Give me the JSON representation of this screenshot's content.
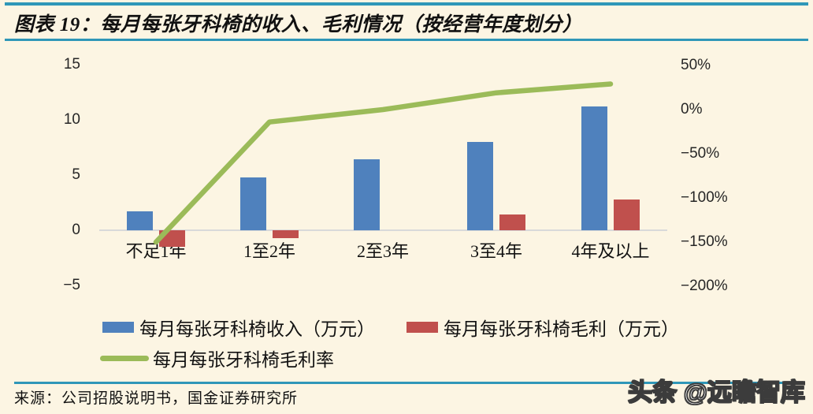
{
  "header": {
    "title": "图表 19：每月每张牙科椅的收入、毛利情况（按经营年度划分）"
  },
  "chart_data": {
    "type": "bar",
    "subtype": "clustered-bar-with-line-combo",
    "title": "每月每张牙科椅的收入、毛利情况（按经营年度划分）",
    "categories": [
      "不足1年",
      "1至2年",
      "2至3年",
      "3至4年",
      "4年及以上"
    ],
    "series": [
      {
        "name": "每月每张牙科椅收入（万元）",
        "type": "bar",
        "axis": "left",
        "color": "#4f81bd",
        "values": [
          1.7,
          4.8,
          6.4,
          8.0,
          11.2
        ]
      },
      {
        "name": "每月每张牙科椅毛利（万元）",
        "type": "bar",
        "axis": "left",
        "color": "#c0504d",
        "values": [
          -1.5,
          -0.7,
          0.0,
          1.4,
          2.8
        ]
      },
      {
        "name": "每月每张牙科椅毛利率",
        "type": "line",
        "axis": "right",
        "color": "#9bbb59",
        "values_pct": [
          -150,
          -14,
          0,
          19,
          29
        ]
      }
    ],
    "left_axis": {
      "tick_labels": [
        "15",
        "10",
        "5",
        "0",
        "−5"
      ],
      "tick_values": [
        15,
        10,
        5,
        0,
        -5
      ],
      "range": [
        -5,
        15
      ]
    },
    "right_axis": {
      "tick_labels": [
        "50%",
        "0%",
        "−50%",
        "−100%",
        "−150%",
        "−200%"
      ],
      "tick_values": [
        50,
        0,
        -50,
        -100,
        -150,
        -200
      ],
      "range_pct": [
        -200,
        50
      ]
    },
    "grid": false,
    "legend_position": "bottom"
  },
  "footer": {
    "source": "来源：公司招股说明书，国金证券研究所",
    "watermark": "头条 @远瞻智库"
  },
  "colors": {
    "background": "#fcf5e3",
    "rule_teal": "#2f97b8",
    "bar_blue": "#4f81bd",
    "bar_red": "#c0504d",
    "line_green": "#9bbb59",
    "axis_gray": "#d9d9d9",
    "text": "#111111"
  }
}
